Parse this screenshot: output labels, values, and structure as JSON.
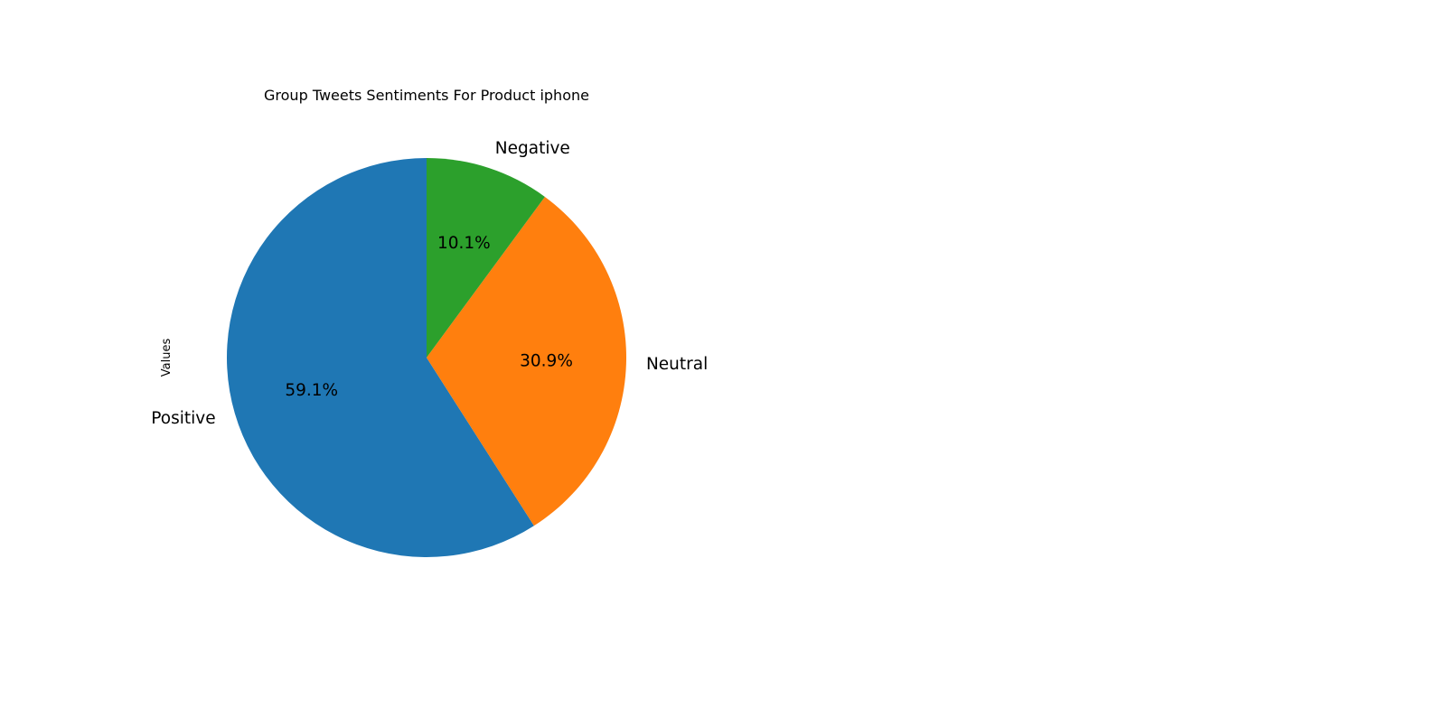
{
  "chart_data": {
    "type": "pie",
    "title": "Group Tweets Sentiments For Product iphone",
    "ylabel": "Values",
    "start_angle_deg": 90,
    "direction": "counterclockwise",
    "slices": [
      {
        "label": "Positive",
        "value": 59.1,
        "pct_label": "59.1%",
        "color": "#1f77b4"
      },
      {
        "label": "Neutral",
        "value": 30.9,
        "pct_label": "30.9%",
        "color": "#ff7f0e"
      },
      {
        "label": "Negative",
        "value": 10.1,
        "pct_label": "10.1%",
        "color": "#2ca02c"
      }
    ]
  }
}
